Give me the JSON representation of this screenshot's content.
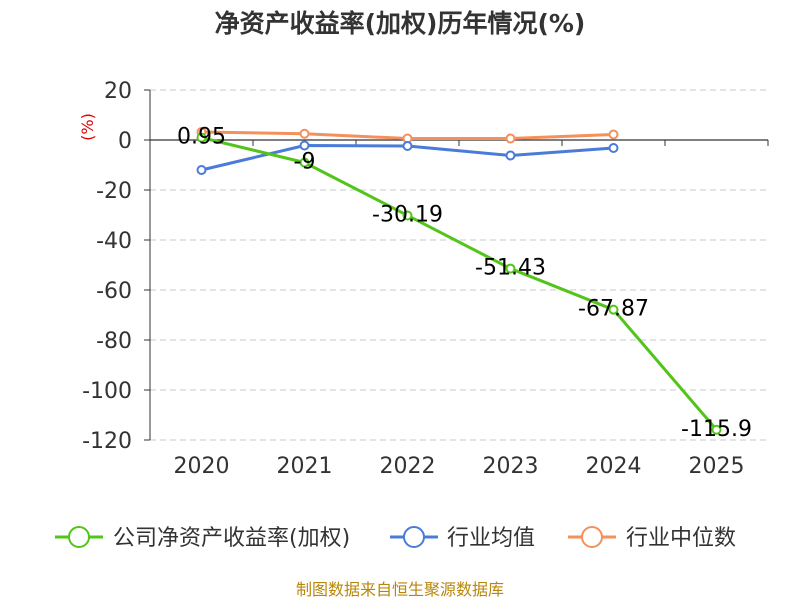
{
  "chart_data": {
    "type": "line",
    "title": "净资产收益率(加权)历年情况(%)",
    "ylabel": "(%)",
    "xlabel": "",
    "ylim": [
      -120,
      20
    ],
    "yticks": [
      20,
      0,
      -20,
      -40,
      -60,
      -80,
      -100,
      -120
    ],
    "categories": [
      "2020",
      "2021",
      "2022",
      "2023",
      "2024",
      "2025"
    ],
    "grid": true,
    "legend_position": "bottom",
    "series": [
      {
        "name": "公司净资产收益率(加权)",
        "color": "#52c41a",
        "values": [
          0.95,
          -9,
          -30.19,
          -51.43,
          -67.87,
          -115.9
        ],
        "labels": [
          "0.95",
          "-9",
          "-30.19",
          "-51.43",
          "-67.87",
          "-115.9"
        ]
      },
      {
        "name": "行业均值",
        "color": "#4a7bd8",
        "values": [
          -12,
          -2.2,
          -2.4,
          -6.2,
          -3.2,
          null
        ]
      },
      {
        "name": "行业中位数",
        "color": "#f4905a",
        "values": [
          3.2,
          2.5,
          0.6,
          0.6,
          2.2,
          null
        ]
      }
    ]
  },
  "footer": {
    "source": "制图数据来自恒生聚源数据库"
  }
}
